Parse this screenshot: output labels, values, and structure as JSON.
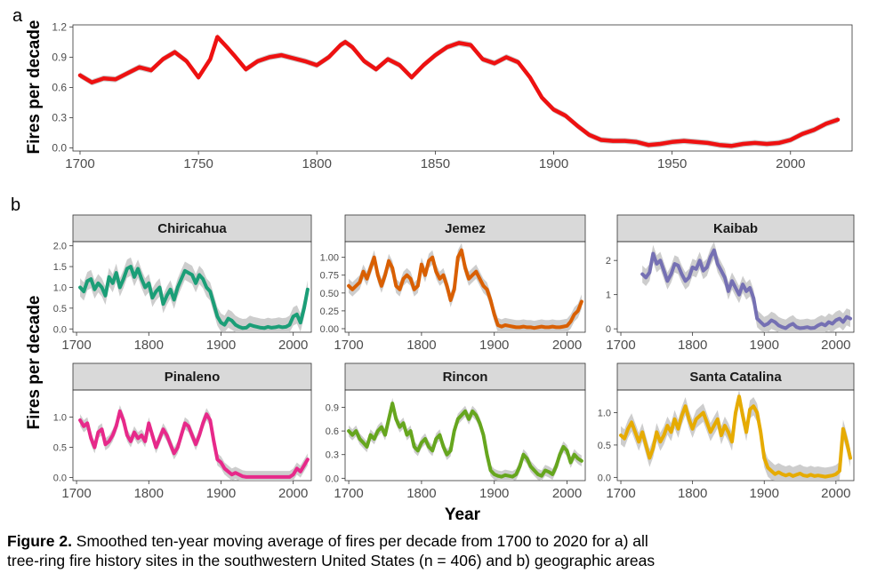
{
  "figure": {
    "panel_a_label": "a",
    "panel_b_label": "b",
    "ylabel": "Fires per decade",
    "xlabel": "Year",
    "caption_lead": "Figure 2.",
    "caption_line1": " Smoothed ten-year moving average of fires per decade from 1700 to 2020 for a) all",
    "caption_line2": "tree-ring fire history sites in the southwestern United States (n = 406) and b) geographic areas"
  },
  "chart_data": [
    {
      "id": "a",
      "type": "line",
      "title": "",
      "xlabel": "",
      "ylabel": "Fires per decade",
      "xlim": [
        1697,
        2026
      ],
      "ylim": [
        -0.03,
        1.22
      ],
      "xticks": [
        1700,
        1750,
        1800,
        1850,
        1900,
        1950,
        2000
      ],
      "yticks": [
        0.0,
        0.3,
        0.6,
        0.9,
        1.2
      ],
      "ytick_labels": [
        "0.0",
        "0.3",
        "0.6",
        "0.9",
        "1.2"
      ],
      "color": "#ee1111",
      "band": 0.03,
      "x": [
        1700,
        1705,
        1710,
        1715,
        1720,
        1725,
        1730,
        1735,
        1740,
        1745,
        1750,
        1755,
        1758,
        1762,
        1765,
        1770,
        1775,
        1780,
        1785,
        1790,
        1795,
        1800,
        1805,
        1810,
        1812,
        1815,
        1820,
        1825,
        1830,
        1835,
        1840,
        1845,
        1850,
        1855,
        1860,
        1865,
        1870,
        1875,
        1880,
        1885,
        1890,
        1895,
        1900,
        1905,
        1910,
        1915,
        1920,
        1925,
        1930,
        1935,
        1940,
        1945,
        1950,
        1955,
        1960,
        1965,
        1970,
        1975,
        1980,
        1985,
        1990,
        1995,
        2000,
        2005,
        2010,
        2015,
        2020
      ],
      "y": [
        0.72,
        0.65,
        0.69,
        0.68,
        0.74,
        0.8,
        0.77,
        0.88,
        0.95,
        0.86,
        0.7,
        0.88,
        1.1,
        1.0,
        0.92,
        0.78,
        0.86,
        0.9,
        0.92,
        0.89,
        0.86,
        0.82,
        0.9,
        1.02,
        1.05,
        1.0,
        0.86,
        0.78,
        0.88,
        0.82,
        0.7,
        0.82,
        0.92,
        1.0,
        1.04,
        1.02,
        0.88,
        0.84,
        0.9,
        0.85,
        0.7,
        0.5,
        0.38,
        0.32,
        0.22,
        0.13,
        0.08,
        0.07,
        0.07,
        0.06,
        0.03,
        0.04,
        0.06,
        0.07,
        0.06,
        0.05,
        0.03,
        0.02,
        0.04,
        0.05,
        0.04,
        0.05,
        0.08,
        0.14,
        0.18,
        0.24,
        0.28
      ]
    },
    {
      "id": "Chiricahua",
      "type": "line",
      "title": "Chiricahua",
      "xlim": [
        1695,
        2025
      ],
      "ylim": [
        -0.08,
        2.1
      ],
      "yticks": [
        0,
        0.5,
        1,
        1.5,
        2
      ],
      "ytick_labels": [
        "0.0",
        "0.5",
        "1.0",
        "1.5",
        "2.0"
      ],
      "color": "#1b9e77",
      "band": 0.22,
      "x": [
        1705,
        1710,
        1715,
        1720,
        1725,
        1730,
        1735,
        1740,
        1745,
        1750,
        1755,
        1760,
        1765,
        1770,
        1775,
        1780,
        1785,
        1790,
        1795,
        1800,
        1805,
        1810,
        1815,
        1820,
        1825,
        1830,
        1835,
        1840,
        1845,
        1850,
        1855,
        1860,
        1865,
        1870,
        1875,
        1880,
        1885,
        1890,
        1895,
        1900,
        1905,
        1910,
        1915,
        1920,
        1925,
        1930,
        1935,
        1940,
        1945,
        1950,
        1955,
        1960,
        1965,
        1970,
        1975,
        1980,
        1985,
        1990,
        1995,
        2000,
        2005,
        2010,
        2015,
        2020
      ],
      "y": [
        1.0,
        0.9,
        1.15,
        1.2,
        0.95,
        1.1,
        1.0,
        0.8,
        1.25,
        1.1,
        1.35,
        1.0,
        1.2,
        1.45,
        1.5,
        1.25,
        1.45,
        1.2,
        1.0,
        1.1,
        0.75,
        0.9,
        1.0,
        0.6,
        0.8,
        0.95,
        0.7,
        1.0,
        1.2,
        1.4,
        1.35,
        1.3,
        1.1,
        1.3,
        1.2,
        1.0,
        0.9,
        0.6,
        0.3,
        0.15,
        0.1,
        0.25,
        0.2,
        0.1,
        0.05,
        0.02,
        0.03,
        0.1,
        0.07,
        0.05,
        0.03,
        0.02,
        0.05,
        0.03,
        0.04,
        0.06,
        0.04,
        0.05,
        0.1,
        0.3,
        0.35,
        0.15,
        0.5,
        0.95
      ]
    },
    {
      "id": "Jemez",
      "type": "line",
      "title": "Jemez",
      "xlim": [
        1695,
        2025
      ],
      "ylim": [
        -0.05,
        1.22
      ],
      "yticks": [
        0,
        0.25,
        0.5,
        0.75,
        1.0
      ],
      "ytick_labels": [
        "0.00",
        "0.25",
        "0.50",
        "0.75",
        "1.00"
      ],
      "color": "#d95f02",
      "band": 0.1,
      "x": [
        1700,
        1705,
        1710,
        1715,
        1720,
        1725,
        1730,
        1735,
        1740,
        1745,
        1750,
        1755,
        1760,
        1765,
        1770,
        1775,
        1780,
        1785,
        1790,
        1795,
        1800,
        1805,
        1810,
        1815,
        1820,
        1825,
        1830,
        1835,
        1840,
        1845,
        1850,
        1855,
        1860,
        1865,
        1870,
        1875,
        1880,
        1885,
        1890,
        1895,
        1900,
        1905,
        1910,
        1915,
        1920,
        1925,
        1930,
        1935,
        1940,
        1945,
        1950,
        1955,
        1960,
        1965,
        1970,
        1975,
        1980,
        1985,
        1990,
        1995,
        2000,
        2005,
        2010,
        2015,
        2020
      ],
      "y": [
        0.6,
        0.55,
        0.6,
        0.65,
        0.8,
        0.7,
        0.85,
        1.0,
        0.75,
        0.6,
        0.75,
        0.95,
        0.85,
        0.6,
        0.55,
        0.7,
        0.75,
        0.7,
        0.55,
        0.6,
        0.9,
        0.75,
        0.95,
        1.0,
        0.8,
        0.7,
        0.75,
        0.6,
        0.4,
        0.55,
        1.0,
        1.1,
        0.85,
        0.7,
        0.75,
        0.8,
        0.7,
        0.6,
        0.55,
        0.4,
        0.2,
        0.05,
        0.03,
        0.05,
        0.04,
        0.03,
        0.02,
        0.02,
        0.03,
        0.02,
        0.02,
        0.01,
        0.02,
        0.03,
        0.02,
        0.02,
        0.03,
        0.02,
        0.02,
        0.03,
        0.04,
        0.1,
        0.2,
        0.25,
        0.38
      ]
    },
    {
      "id": "Kaibab",
      "type": "line",
      "title": "Kaibab",
      "xlim": [
        1695,
        2025
      ],
      "ylim": [
        -0.1,
        2.55
      ],
      "yticks": [
        0,
        1,
        2
      ],
      "ytick_labels": [
        "0",
        "1",
        "2"
      ],
      "color": "#7570b3",
      "band": 0.25,
      "x": [
        1730,
        1735,
        1740,
        1745,
        1750,
        1755,
        1760,
        1765,
        1770,
        1775,
        1780,
        1785,
        1790,
        1795,
        1800,
        1805,
        1810,
        1815,
        1820,
        1825,
        1830,
        1835,
        1840,
        1845,
        1850,
        1855,
        1860,
        1865,
        1870,
        1875,
        1880,
        1885,
        1890,
        1895,
        1900,
        1905,
        1910,
        1915,
        1920,
        1925,
        1930,
        1935,
        1940,
        1945,
        1950,
        1955,
        1960,
        1965,
        1970,
        1975,
        1980,
        1985,
        1990,
        1995,
        2000,
        2005,
        2010,
        2015,
        2020
      ],
      "y": [
        1.6,
        1.5,
        1.65,
        2.2,
        1.9,
        2.0,
        1.7,
        1.4,
        1.6,
        1.9,
        1.85,
        1.6,
        1.4,
        1.5,
        1.8,
        1.75,
        2.0,
        1.7,
        1.8,
        2.1,
        2.3,
        1.9,
        1.7,
        1.5,
        1.1,
        1.4,
        1.2,
        1.0,
        1.3,
        1.1,
        1.2,
        0.9,
        0.3,
        0.2,
        0.1,
        0.15,
        0.25,
        0.2,
        0.1,
        0.05,
        0.02,
        0.1,
        0.15,
        0.05,
        0.02,
        0.03,
        0.05,
        0.02,
        0.03,
        0.1,
        0.15,
        0.1,
        0.2,
        0.15,
        0.25,
        0.3,
        0.2,
        0.35,
        0.3
      ]
    },
    {
      "id": "Pinaleno",
      "type": "line",
      "title": "Pinaleno",
      "xlim": [
        1695,
        2025
      ],
      "ylim": [
        -0.05,
        1.45
      ],
      "yticks": [
        0,
        0.5,
        1.0
      ],
      "ytick_labels": [
        "0.0",
        "0.5",
        "1.0"
      ],
      "color": "#e7298a",
      "band": 0.1,
      "x": [
        1705,
        1710,
        1715,
        1720,
        1725,
        1730,
        1735,
        1740,
        1745,
        1750,
        1755,
        1760,
        1765,
        1770,
        1775,
        1780,
        1785,
        1790,
        1795,
        1800,
        1805,
        1810,
        1815,
        1820,
        1825,
        1830,
        1835,
        1840,
        1845,
        1850,
        1855,
        1860,
        1865,
        1870,
        1875,
        1880,
        1885,
        1890,
        1895,
        1900,
        1905,
        1910,
        1915,
        1920,
        1925,
        1930,
        1935,
        1940,
        1945,
        1950,
        1955,
        1960,
        1965,
        1970,
        1975,
        1980,
        1985,
        1990,
        1995,
        2000,
        2005,
        2010,
        2015,
        2020
      ],
      "y": [
        0.95,
        0.85,
        0.9,
        0.65,
        0.5,
        0.75,
        0.8,
        0.55,
        0.6,
        0.7,
        0.85,
        1.1,
        0.95,
        0.7,
        0.6,
        0.75,
        0.65,
        0.7,
        0.6,
        0.9,
        0.7,
        0.5,
        0.65,
        0.8,
        0.7,
        0.55,
        0.4,
        0.5,
        0.7,
        0.9,
        0.85,
        0.7,
        0.55,
        0.7,
        0.9,
        1.05,
        0.95,
        0.6,
        0.3,
        0.25,
        0.15,
        0.1,
        0.05,
        0.08,
        0.05,
        0.02,
        0.01,
        0.01,
        0.01,
        0.01,
        0.01,
        0.01,
        0.01,
        0.01,
        0.01,
        0.01,
        0.01,
        0.01,
        0.01,
        0.05,
        0.15,
        0.1,
        0.2,
        0.3
      ]
    },
    {
      "id": "Rincon",
      "type": "line",
      "title": "Rincon",
      "xlim": [
        1695,
        2025
      ],
      "ylim": [
        -0.03,
        1.12
      ],
      "yticks": [
        0,
        0.3,
        0.6,
        0.9
      ],
      "ytick_labels": [
        "0.0",
        "0.3",
        "0.6",
        "0.9"
      ],
      "color": "#66a61e",
      "band": 0.07,
      "x": [
        1700,
        1705,
        1710,
        1715,
        1720,
        1725,
        1730,
        1735,
        1740,
        1745,
        1750,
        1755,
        1760,
        1765,
        1770,
        1775,
        1780,
        1785,
        1790,
        1795,
        1800,
        1805,
        1810,
        1815,
        1820,
        1825,
        1830,
        1835,
        1840,
        1845,
        1850,
        1855,
        1860,
        1865,
        1870,
        1875,
        1880,
        1885,
        1890,
        1895,
        1900,
        1905,
        1910,
        1915,
        1920,
        1925,
        1930,
        1935,
        1940,
        1945,
        1950,
        1955,
        1960,
        1965,
        1970,
        1975,
        1980,
        1985,
        1990,
        1995,
        2000,
        2005,
        2010,
        2015,
        2020
      ],
      "y": [
        0.6,
        0.55,
        0.6,
        0.5,
        0.45,
        0.4,
        0.55,
        0.5,
        0.6,
        0.65,
        0.55,
        0.75,
        0.95,
        0.75,
        0.65,
        0.7,
        0.55,
        0.6,
        0.4,
        0.35,
        0.45,
        0.5,
        0.4,
        0.35,
        0.5,
        0.55,
        0.4,
        0.3,
        0.35,
        0.6,
        0.75,
        0.8,
        0.85,
        0.75,
        0.85,
        0.8,
        0.7,
        0.55,
        0.3,
        0.1,
        0.05,
        0.03,
        0.02,
        0.04,
        0.03,
        0.02,
        0.05,
        0.15,
        0.3,
        0.25,
        0.15,
        0.1,
        0.05,
        0.03,
        0.1,
        0.08,
        0.05,
        0.15,
        0.3,
        0.4,
        0.35,
        0.2,
        0.3,
        0.25,
        0.22
      ]
    },
    {
      "id": "Santa Catalina",
      "type": "line",
      "title": "Santa Catalina",
      "xlim": [
        1695,
        2025
      ],
      "ylim": [
        -0.05,
        1.35
      ],
      "yticks": [
        0,
        0.5,
        1.0
      ],
      "ytick_labels": [
        "0.0",
        "0.5",
        "1.0"
      ],
      "color": "#e6ab02",
      "band": 0.14,
      "x": [
        1700,
        1705,
        1710,
        1715,
        1720,
        1725,
        1730,
        1735,
        1740,
        1745,
        1750,
        1755,
        1760,
        1765,
        1770,
        1775,
        1780,
        1785,
        1790,
        1795,
        1800,
        1805,
        1810,
        1815,
        1820,
        1825,
        1830,
        1835,
        1840,
        1845,
        1850,
        1855,
        1860,
        1865,
        1870,
        1875,
        1880,
        1885,
        1890,
        1895,
        1900,
        1905,
        1910,
        1915,
        1920,
        1925,
        1930,
        1935,
        1940,
        1945,
        1950,
        1955,
        1960,
        1965,
        1970,
        1975,
        1980,
        1985,
        1990,
        1995,
        2000,
        2005,
        2010,
        2015,
        2020
      ],
      "y": [
        0.65,
        0.6,
        0.75,
        0.85,
        0.7,
        0.55,
        0.7,
        0.5,
        0.3,
        0.45,
        0.7,
        0.55,
        0.65,
        0.8,
        0.7,
        0.9,
        0.75,
        0.95,
        1.1,
        0.9,
        0.75,
        0.9,
        0.95,
        1.0,
        0.85,
        0.7,
        0.8,
        0.9,
        0.65,
        0.8,
        0.7,
        0.55,
        1.0,
        1.25,
        0.95,
        0.7,
        1.05,
        1.1,
        1.0,
        0.7,
        0.3,
        0.15,
        0.1,
        0.05,
        0.08,
        0.05,
        0.03,
        0.05,
        0.02,
        0.04,
        0.06,
        0.03,
        0.02,
        0.04,
        0.02,
        0.03,
        0.02,
        0.01,
        0.02,
        0.03,
        0.05,
        0.1,
        0.75,
        0.55,
        0.3
      ]
    }
  ],
  "facet_x": {
    "xlim": [
      1695,
      2025
    ],
    "xticks": [
      1700,
      1800,
      1900,
      2000
    ],
    "xtick_labels": [
      "1700",
      "1800",
      "1900",
      "2000"
    ]
  }
}
